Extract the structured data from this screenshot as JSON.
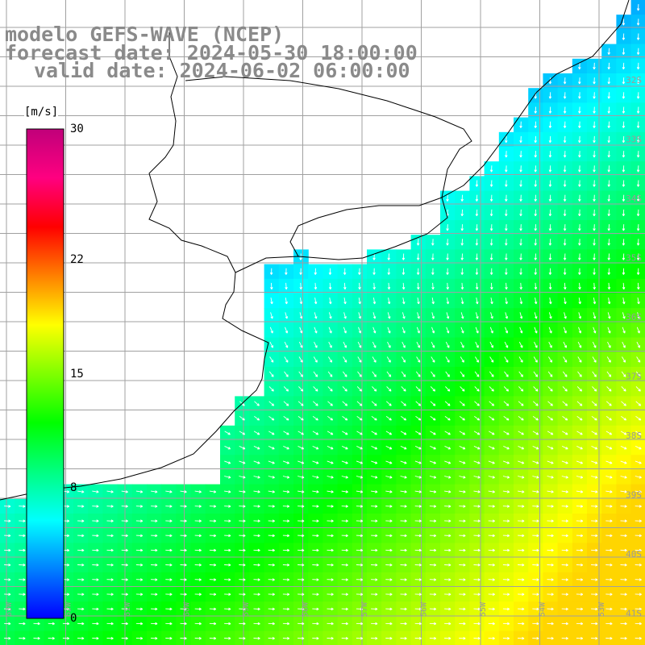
{
  "title": {
    "line1": "modelo GEFS-WAVE (NCEP)",
    "line2": "forecast date: 2024-05-30 18:00:00",
    "line3": "valid date: 2024-06-02 06:00:00"
  },
  "colorbar": {
    "unit": "[m/s]",
    "ticks": [
      {
        "value": 0,
        "label": "0"
      },
      {
        "value": 8,
        "label": "8"
      },
      {
        "value": 15,
        "label": "15"
      },
      {
        "value": 22,
        "label": "22"
      },
      {
        "value": 30,
        "label": "30"
      }
    ],
    "range": [
      0,
      30
    ],
    "colors": [
      "#0000ff",
      "#0080ff",
      "#00ffff",
      "#00ff80",
      "#00ff00",
      "#80ff00",
      "#ffff00",
      "#ff8000",
      "#ff0000",
      "#ff0080",
      "#c0007a"
    ]
  },
  "map": {
    "variable": "wind speed and direction",
    "land_color": "#ffffff",
    "grid_color": "#a0a0a0",
    "coast_color": "#000000",
    "lat_labels": [
      "32S",
      "33S",
      "34S",
      "35S",
      "36S",
      "37S",
      "38S",
      "39S",
      "40S",
      "41S"
    ],
    "lon_labels": [
      "63W",
      "62W",
      "61W",
      "60W",
      "59W",
      "58W",
      "57W",
      "56W",
      "55W",
      "54W",
      "53W"
    ]
  }
}
